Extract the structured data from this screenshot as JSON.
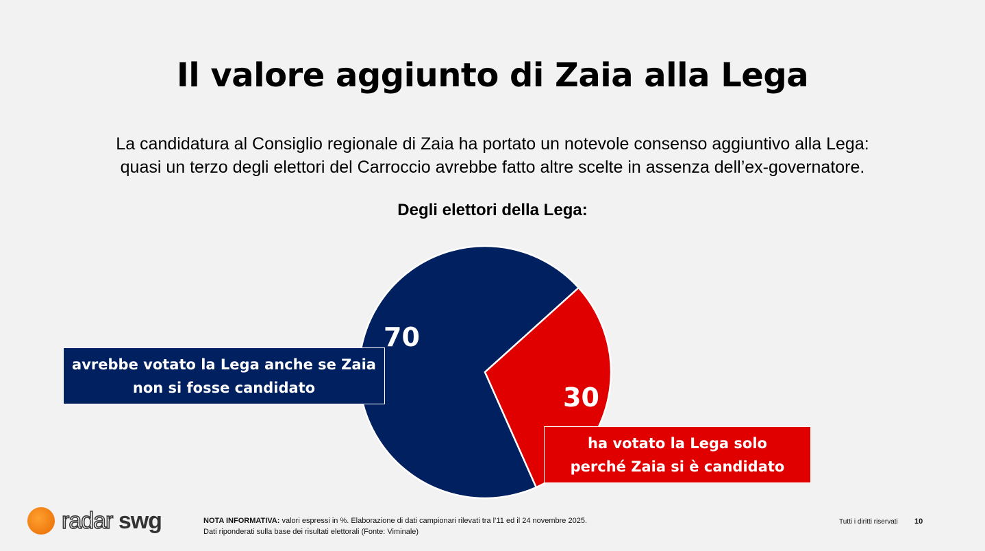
{
  "title": "Il valore aggiunto di Zaia alla Lega",
  "subtitle_lines": [
    "La candidatura al Consiglio regionale di Zaia ha portato un notevole consenso aggiuntivo alla Lega:",
    "quasi un terzo degli elettori del Carroccio avrebbe fatto altre scelte in assenza dell’ex-governatore."
  ],
  "chart_data": {
    "type": "pie",
    "title": "Degli elettori della Lega:",
    "unit": "%",
    "slices": [
      {
        "label_lines": [
          "avrebbe votato la Lega anche se Zaia",
          "non si fosse candidato"
        ],
        "value": 70,
        "color": "#002060"
      },
      {
        "label_lines": [
          "ha votato la Lega solo",
          "perché Zaia si è candidato"
        ],
        "value": 30,
        "color": "#e00000"
      }
    ]
  },
  "footer": {
    "logo_text": [
      "radar",
      "swg"
    ],
    "note_label": "NOTA INFORMATIVA:",
    "note_line1": " valori espressi in %. Elaborazione di dati campionari rilevati tra l’11 ed il 24 novembre 2025.",
    "note_line2": "Dati riponderati sulla base dei risultati elettorali (Fonte: Viminale)",
    "rights": "Tutti i diritti riservati",
    "page": "10"
  }
}
